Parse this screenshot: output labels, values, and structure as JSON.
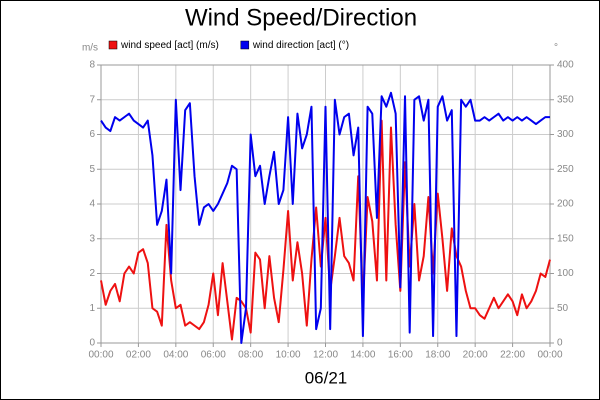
{
  "chart_data": {
    "type": "line",
    "title": "Wind Speed/Direction",
    "ylabel": "m/s",
    "y2label": "°",
    "xlabel": "06/21",
    "grid": true,
    "xlim": [
      0,
      24
    ],
    "xticks": [
      {
        "value": 0,
        "label": "00:00"
      },
      {
        "value": 2,
        "label": "02:00"
      },
      {
        "value": 4,
        "label": "04:00"
      },
      {
        "value": 6,
        "label": "06:00"
      },
      {
        "value": 8,
        "label": "08:00"
      },
      {
        "value": 10,
        "label": "10:00"
      },
      {
        "value": 12,
        "label": "12:00"
      },
      {
        "value": 14,
        "label": "14:00"
      },
      {
        "value": 16,
        "label": "16:00"
      },
      {
        "value": 18,
        "label": "18:00"
      },
      {
        "value": 20,
        "label": "20:00"
      },
      {
        "value": 22,
        "label": "22:00"
      },
      {
        "value": 24,
        "label": "00:00"
      }
    ],
    "ylim": [
      0,
      8
    ],
    "yticks": [
      0,
      1,
      2,
      3,
      4,
      5,
      6,
      7,
      8
    ],
    "y2lim": [
      0,
      400
    ],
    "y2ticks": [
      0,
      50,
      100,
      150,
      200,
      250,
      300,
      350,
      400
    ],
    "x": [
      0,
      0.25,
      0.5,
      0.75,
      1,
      1.25,
      1.5,
      1.75,
      2,
      2.25,
      2.5,
      2.75,
      3,
      3.25,
      3.5,
      3.75,
      4,
      4.25,
      4.5,
      4.75,
      5,
      5.25,
      5.5,
      5.75,
      6,
      6.25,
      6.5,
      6.75,
      7,
      7.25,
      7.5,
      7.75,
      8,
      8.25,
      8.5,
      8.75,
      9,
      9.25,
      9.5,
      9.75,
      10,
      10.25,
      10.5,
      10.75,
      11,
      11.25,
      11.5,
      11.75,
      12,
      12.25,
      12.5,
      12.75,
      13,
      13.25,
      13.5,
      13.75,
      14,
      14.25,
      14.5,
      14.75,
      15,
      15.25,
      15.5,
      15.75,
      16,
      16.25,
      16.5,
      16.75,
      17,
      17.25,
      17.5,
      17.75,
      18,
      18.25,
      18.5,
      18.75,
      19,
      19.25,
      19.5,
      19.75,
      20,
      20.25,
      20.5,
      20.75,
      21,
      21.25,
      21.5,
      21.75,
      22,
      22.25,
      22.5,
      22.75,
      23,
      23.25,
      23.5,
      23.75,
      24
    ],
    "series": [
      {
        "name": "wind speed [act] (m/s)",
        "color": "#ee1111",
        "values": [
          1.8,
          1.1,
          1.5,
          1.7,
          1.2,
          2.0,
          2.2,
          2.0,
          2.6,
          2.7,
          2.3,
          1.0,
          0.9,
          0.5,
          3.4,
          1.8,
          1.0,
          1.1,
          0.5,
          0.6,
          0.5,
          0.4,
          0.6,
          1.1,
          2.0,
          0.8,
          2.3,
          1.2,
          0.1,
          1.3,
          1.2,
          1.0,
          0.3,
          2.6,
          2.4,
          1.0,
          2.5,
          1.3,
          0.6,
          2.1,
          3.8,
          1.8,
          2.9,
          2.0,
          0.5,
          2.4,
          3.9,
          2.2,
          3.6,
          1.5,
          2.5,
          3.6,
          2.5,
          2.3,
          1.8,
          4.8,
          1.2,
          4.2,
          3.5,
          1.8,
          6.4,
          1.8,
          6.2,
          3.4,
          1.5,
          5.2,
          2.2,
          4.0,
          1.8,
          2.5,
          4.2,
          2.0,
          4.3,
          3.0,
          1.5,
          3.3,
          2.5,
          2.2,
          1.5,
          1.0,
          1.0,
          0.8,
          0.7,
          1.0,
          1.3,
          1.0,
          1.2,
          1.4,
          1.2,
          0.8,
          1.4,
          1.0,
          1.2,
          1.5,
          2.0,
          1.9,
          2.4
        ]
      },
      {
        "name": "wind direction [act] (°)",
        "color": "#0000ee",
        "axis": "y2",
        "values": [
          320,
          310,
          305,
          325,
          320,
          325,
          330,
          320,
          315,
          310,
          320,
          270,
          170,
          190,
          235,
          100,
          350,
          220,
          335,
          345,
          240,
          170,
          195,
          200,
          190,
          200,
          215,
          230,
          255,
          250,
          0,
          50,
          300,
          240,
          255,
          200,
          240,
          275,
          200,
          220,
          325,
          200,
          330,
          280,
          300,
          340,
          20,
          50,
          340,
          20,
          350,
          300,
          325,
          330,
          270,
          310,
          10,
          340,
          330,
          180,
          355,
          340,
          360,
          330,
          80,
          355,
          15,
          350,
          355,
          320,
          350,
          10,
          340,
          355,
          320,
          335,
          10,
          350,
          340,
          350,
          320,
          320,
          325,
          320,
          325,
          330,
          320,
          325,
          320,
          325,
          320,
          325,
          320,
          315,
          320,
          325,
          325
        ]
      }
    ]
  }
}
